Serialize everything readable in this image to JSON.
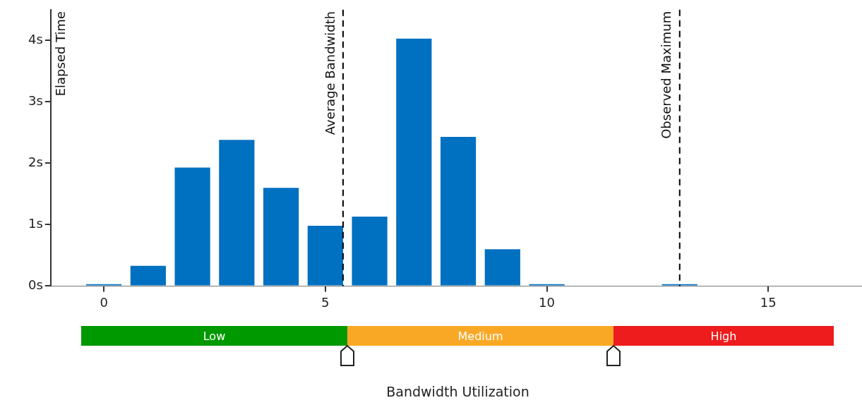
{
  "chart_data": {
    "type": "bar",
    "ylabel": "Elapsed Time",
    "x": [
      0,
      1,
      2,
      3,
      4,
      5,
      6,
      7,
      8,
      9,
      10,
      11,
      12,
      13
    ],
    "values": [
      0.03,
      0.33,
      1.93,
      2.38,
      1.6,
      0.98,
      1.13,
      4.03,
      2.43,
      0.6,
      0.03,
      0,
      0,
      0.03
    ],
    "color": "#0070c0",
    "xlim": [
      -1.2,
      17.1
    ],
    "xticks": [
      0,
      5,
      10,
      15
    ],
    "ylim": [
      0,
      4.5
    ],
    "yticks": [
      {
        "value": 0,
        "label": "0s"
      },
      {
        "value": 1,
        "label": "1s"
      },
      {
        "value": 2,
        "label": "2s"
      },
      {
        "value": 3,
        "label": "3s"
      },
      {
        "value": 4,
        "label": "4s"
      }
    ],
    "ref_lines": [
      {
        "axis": "x",
        "value": 5.4,
        "label": "Average Bandwidth",
        "color": "#000000",
        "line_style": "dashed"
      },
      {
        "axis": "x",
        "value": 13,
        "label": "Observed Maximum",
        "color": "#000000",
        "line_style": "dashed"
      }
    ],
    "annotations": [
      "Low",
      "Medium",
      "High",
      "Bandwidth Utilization"
    ],
    "grid": false,
    "legend": false
  }
}
